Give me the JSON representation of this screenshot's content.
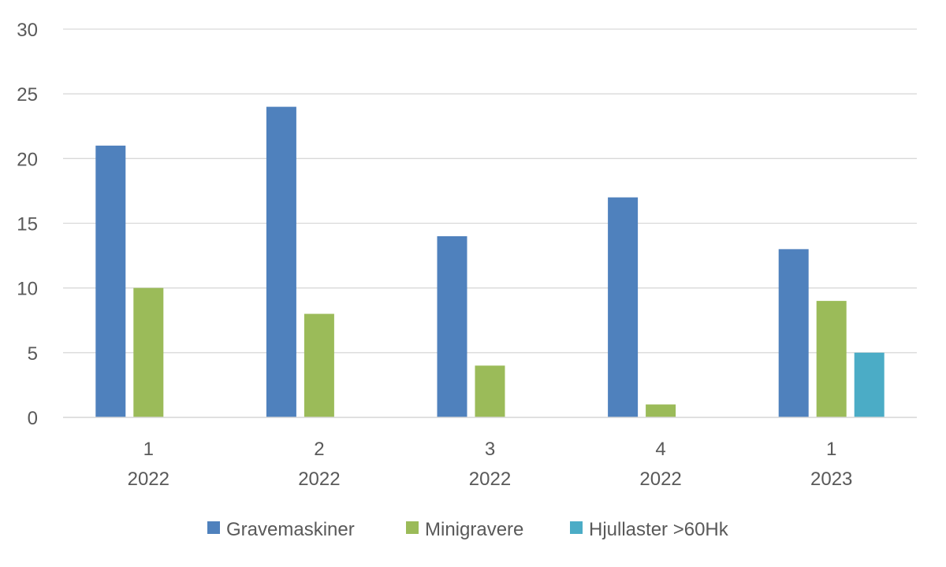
{
  "chart_data": {
    "type": "bar",
    "categories": [
      {
        "quarter": "1",
        "year": "2022"
      },
      {
        "quarter": "2",
        "year": "2022"
      },
      {
        "quarter": "3",
        "year": "2022"
      },
      {
        "quarter": "4",
        "year": "2022"
      },
      {
        "quarter": "1",
        "year": "2023"
      }
    ],
    "series": [
      {
        "name": "Gravemaskiner",
        "color": "#4f81bd",
        "values": [
          21,
          24,
          14,
          17,
          13
        ]
      },
      {
        "name": "Minigravere",
        "color": "#9bbb59",
        "values": [
          10,
          8,
          4,
          1,
          9
        ]
      },
      {
        "name": "Hjullaster >60Hk",
        "color": "#4bacc6",
        "values": [
          0,
          0,
          0,
          0,
          5
        ]
      }
    ],
    "ylim": [
      0,
      30
    ],
    "yticks": [
      0,
      5,
      10,
      15,
      20,
      25,
      30
    ],
    "grid": true,
    "legend_position": "bottom"
  }
}
